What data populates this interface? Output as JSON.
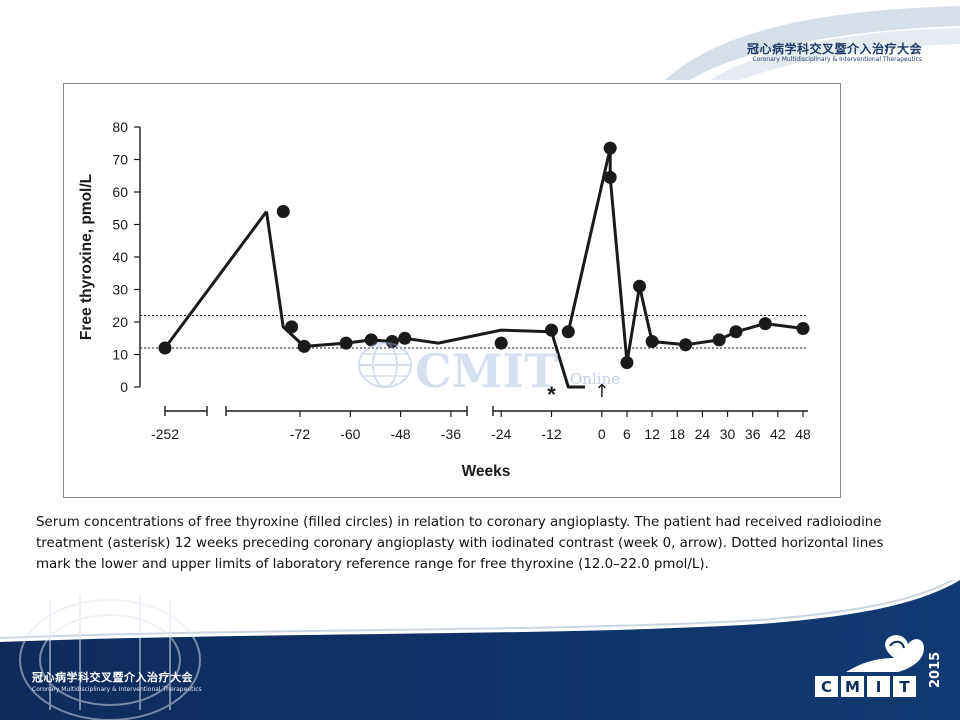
{
  "header": {
    "title": "冠心病学科交叉暨介入治疗大会",
    "subtitle": "Coronary Multidisciplinary & Interventional Therapeutics"
  },
  "footer": {
    "title": "冠心病学科交叉暨介入治疗大会",
    "subtitle": "Coronary Multidisciplinary & Interventional Therapeutics",
    "brand_letters": [
      "C",
      "M",
      "I",
      "T"
    ],
    "brand_year": "2015"
  },
  "watermark": {
    "text": "CMIT",
    "sub": "Online"
  },
  "caption": "Serum concentrations of free thyroxine (filled circles) in relation to coronary angioplasty. The patient had received radioiodine treatment (asterisk) 12 weeks preceding coronary angioplasty with iodinated contrast (week 0, arrow). Dotted horizontal lines mark the lower and upper limits of laboratory reference range for free thyroxine (12.0–22.0 pmol/L).",
  "colors": {
    "navy": "#0d2c5c",
    "navy_light": "#1f4e8c",
    "swoosh": "#c8d3e0",
    "line": "#1a1a1a"
  },
  "chart_data": {
    "type": "line",
    "xlabel": "Weeks",
    "ylabel": "Free thyroxine, pmol/L",
    "ylim": [
      0,
      80
    ],
    "y_ticks": [
      "0",
      "10",
      "20",
      "30",
      "40",
      "50",
      "60",
      "70",
      "80"
    ],
    "x_ticks": [
      "-252",
      "-72",
      "-60",
      "-48",
      "-36",
      "-24",
      "-12",
      "0",
      "6",
      "12",
      "18",
      "24",
      "30",
      "36",
      "42",
      "48"
    ],
    "reference_lines": [
      12,
      22
    ],
    "asterisk_label": "*",
    "arrow_label": "↑",
    "series": [
      {
        "segments": [
          {
            "x": [
              -252,
              -80
            ],
            "y": [
              12,
              54
            ]
          },
          {
            "x": [
              -80,
              -76,
              -71,
              -61,
              -55,
              -50,
              -47,
              -39,
              -24,
              -12,
              -8,
              -4
            ],
            "y": [
              54,
              18.5,
              12.5,
              13.5,
              14.5,
              14,
              15,
              13.5,
              17.5,
              17,
              0,
              0
            ]
          },
          {
            "x": [
              -8,
              2
            ],
            "y": [
              17,
              73.5
            ]
          },
          {
            "x": [
              2,
              2,
              6,
              9,
              12,
              20,
              28,
              32,
              39,
              48
            ],
            "y": [
              73.5,
              64.5,
              7.5,
              31,
              14,
              13,
              14.5,
              17,
              19.5,
              18
            ]
          }
        ]
      }
    ]
  }
}
